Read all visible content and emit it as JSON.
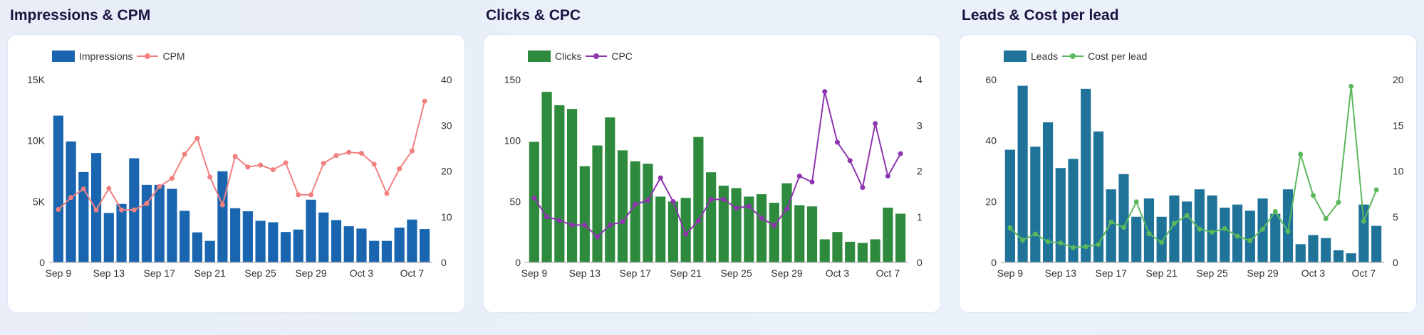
{
  "chart_data": [
    {
      "type": "bar+line",
      "title": "Impressions & CPM",
      "categories": [
        "Sep 9",
        "Sep 10",
        "Sep 11",
        "Sep 12",
        "Sep 13",
        "Sep 14",
        "Sep 15",
        "Sep 16",
        "Sep 17",
        "Sep 18",
        "Sep 19",
        "Sep 20",
        "Sep 21",
        "Sep 22",
        "Sep 23",
        "Sep 24",
        "Sep 25",
        "Sep 26",
        "Sep 27",
        "Sep 28",
        "Sep 29",
        "Sep 30",
        "Oct 1",
        "Oct 2",
        "Oct 3",
        "Oct 4",
        "Oct 5",
        "Oct 6",
        "Oct 7",
        "Oct 8"
      ],
      "x_tick_labels": [
        "Sep 9",
        "Sep 13",
        "Sep 17",
        "Sep 21",
        "Sep 25",
        "Sep 29",
        "Oct 3",
        "Oct 7"
      ],
      "legend_placement": "top-left",
      "bar_series": {
        "name": "Impressions",
        "color": "#1a65b0",
        "values": [
          12050,
          9930,
          7420,
          8980,
          4060,
          4800,
          8550,
          6370,
          6370,
          6040,
          4240,
          2470,
          1770,
          7480,
          4450,
          4200,
          3420,
          3300,
          2500,
          2700,
          5150,
          4100,
          3480,
          2970,
          2780,
          1770,
          1770,
          2860,
          3520,
          2740
        ]
      },
      "line_series": {
        "name": "CPM",
        "color": "#f28080",
        "values": [
          11.6,
          14.2,
          16.1,
          11.5,
          16.2,
          11.5,
          11.5,
          12.9,
          16.6,
          18.4,
          23.7,
          27.2,
          18.7,
          12.6,
          23.2,
          20.9,
          21.3,
          20.3,
          21.8,
          14.8,
          14.8,
          21.7,
          23.4,
          24.1,
          23.9,
          21.5,
          15.1,
          20.5,
          24.4,
          35.3
        ]
      },
      "left_axis": {
        "range": [
          0,
          15000
        ],
        "tick_labels": [
          "0",
          "5K",
          "10K",
          "15K"
        ],
        "ticks": [
          0,
          5000,
          10000,
          15000
        ]
      },
      "right_axis": {
        "range": [
          0,
          40
        ],
        "tick_labels": [
          "0",
          "10",
          "20",
          "30",
          "40"
        ],
        "ticks": [
          0,
          10,
          20,
          30,
          40
        ]
      },
      "grid": false
    },
    {
      "type": "bar+line",
      "title": "Clicks & CPC",
      "categories": [
        "Sep 9",
        "Sep 10",
        "Sep 11",
        "Sep 12",
        "Sep 13",
        "Sep 14",
        "Sep 15",
        "Sep 16",
        "Sep 17",
        "Sep 18",
        "Sep 19",
        "Sep 20",
        "Sep 21",
        "Sep 22",
        "Sep 23",
        "Sep 24",
        "Sep 25",
        "Sep 26",
        "Sep 27",
        "Sep 28",
        "Sep 29",
        "Sep 30",
        "Oct 1",
        "Oct 2",
        "Oct 3",
        "Oct 4",
        "Oct 5",
        "Oct 6",
        "Oct 7",
        "Oct 8"
      ],
      "x_tick_labels": [
        "Sep 9",
        "Sep 13",
        "Sep 17",
        "Sep 21",
        "Sep 25",
        "Sep 29",
        "Oct 3",
        "Oct 7"
      ],
      "legend_placement": "top-left",
      "bar_series": {
        "name": "Clicks",
        "color": "#2e8b3e",
        "values": [
          99,
          140,
          129,
          126,
          79,
          96,
          119,
          92,
          83,
          81,
          54,
          50,
          53,
          103,
          74,
          63,
          61,
          54,
          56,
          49,
          65,
          47,
          46,
          19,
          25,
          17,
          16,
          19,
          45,
          40
        ]
      },
      "line_series": {
        "name": "CPC",
        "color": "#8e35b0",
        "values": [
          1.41,
          1.0,
          0.92,
          0.82,
          0.82,
          0.56,
          0.82,
          0.89,
          1.27,
          1.36,
          1.85,
          1.33,
          0.62,
          0.91,
          1.38,
          1.38,
          1.19,
          1.23,
          0.97,
          0.81,
          1.17,
          1.89,
          1.76,
          3.74,
          2.63,
          2.23,
          1.64,
          3.04,
          1.89,
          2.38
        ]
      },
      "left_axis": {
        "range": [
          0,
          150
        ],
        "tick_labels": [
          "0",
          "50",
          "100",
          "150"
        ],
        "ticks": [
          0,
          50,
          100,
          150
        ]
      },
      "right_axis": {
        "range": [
          0,
          4
        ],
        "tick_labels": [
          "0",
          "1",
          "2",
          "3",
          "4"
        ],
        "ticks": [
          0,
          1,
          2,
          3,
          4
        ]
      },
      "grid": false
    },
    {
      "type": "bar+line",
      "title": "Leads & Cost per lead",
      "categories": [
        "Sep 9",
        "Sep 10",
        "Sep 11",
        "Sep 12",
        "Sep 13",
        "Sep 14",
        "Sep 15",
        "Sep 16",
        "Sep 17",
        "Sep 18",
        "Sep 19",
        "Sep 20",
        "Sep 21",
        "Sep 22",
        "Sep 23",
        "Sep 24",
        "Sep 25",
        "Sep 26",
        "Sep 27",
        "Sep 28",
        "Sep 29",
        "Sep 30",
        "Oct 1",
        "Oct 2",
        "Oct 3",
        "Oct 4",
        "Oct 5",
        "Oct 6",
        "Oct 7",
        "Oct 8"
      ],
      "x_tick_labels": [
        "Sep 9",
        "Sep 13",
        "Sep 17",
        "Sep 21",
        "Sep 25",
        "Sep 29",
        "Oct 3",
        "Oct 7"
      ],
      "legend_placement": "top-left",
      "bar_series": {
        "name": "Leads",
        "color": "#1f7399",
        "values": [
          37,
          58,
          38,
          46,
          31,
          34,
          57,
          43,
          24,
          29,
          15,
          21,
          15,
          22,
          20,
          24,
          22,
          18,
          19,
          17,
          21,
          16,
          24,
          6,
          9,
          8,
          4,
          3,
          19,
          12
        ]
      },
      "line_series": {
        "name": "Cost per lead",
        "color": "#5cb85c",
        "values": [
          3.78,
          2.44,
          3.11,
          2.28,
          2.12,
          1.63,
          1.74,
          1.97,
          4.43,
          3.83,
          6.63,
          3.16,
          2.2,
          4.27,
          5.13,
          3.65,
          3.32,
          3.7,
          2.88,
          2.38,
          3.65,
          5.57,
          3.39,
          11.84,
          7.33,
          4.79,
          6.58,
          19.27,
          4.51,
          7.95
        ]
      },
      "left_axis": {
        "range": [
          0,
          60
        ],
        "tick_labels": [
          "0",
          "20",
          "40",
          "60"
        ],
        "ticks": [
          0,
          20,
          40,
          60
        ]
      },
      "right_axis": {
        "range": [
          0,
          20
        ],
        "tick_labels": [
          "0",
          "5",
          "10",
          "15",
          "20"
        ],
        "ticks": [
          0,
          5,
          10,
          15,
          20
        ]
      },
      "grid": false
    }
  ]
}
